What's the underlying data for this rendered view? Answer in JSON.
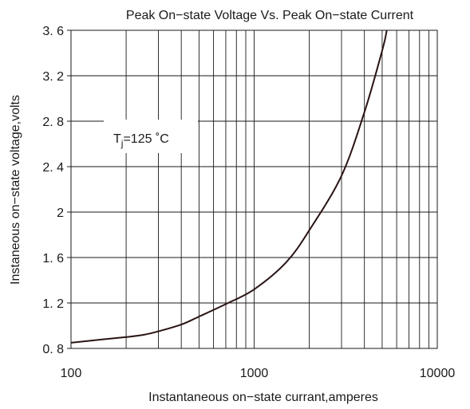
{
  "chart_data": {
    "type": "line",
    "title": "Peak On−state Voltage Vs. Peak On−state Current",
    "xlabel": "Instantaneous on−state currant,amperes",
    "ylabel": "Instaneous on−state voltage,volts",
    "x_scale": "log",
    "xlim": [
      100,
      10000
    ],
    "ylim": [
      0.8,
      3.6
    ],
    "x_tick_labels": [
      "100",
      "1000",
      "10000"
    ],
    "y_tick_labels": [
      "3. 6",
      "3. 2",
      "2. 8",
      "2. 4",
      "2",
      "1. 6",
      "1. 2",
      "0. 8"
    ],
    "grid": true,
    "annotation": {
      "base": "T",
      "subscript": "j",
      "rest": "=125 ˚C"
    },
    "series": [
      {
        "color": "#2a1414",
        "x": [
          100,
          150,
          200,
          250,
          300,
          400,
          500,
          700,
          1000,
          1500,
          2000,
          3000,
          4000,
          5000,
          5300
        ],
        "y": [
          0.85,
          0.88,
          0.9,
          0.92,
          0.95,
          1.01,
          1.08,
          1.19,
          1.32,
          1.56,
          1.84,
          2.32,
          2.88,
          3.42,
          3.6
        ]
      }
    ]
  }
}
